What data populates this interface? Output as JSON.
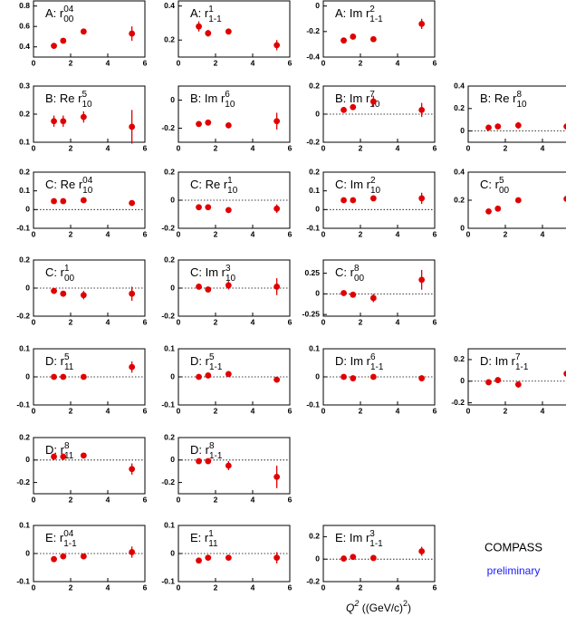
{
  "chart_data": [
    {
      "type": "scatter",
      "label": "A: r",
      "sup": "04",
      "sub": "00",
      "x": [
        1.1,
        1.6,
        2.7,
        5.3
      ],
      "values": [
        0.41,
        0.46,
        0.55,
        0.53
      ],
      "errors": [
        0.01,
        0.01,
        0.01,
        0.07
      ],
      "xlim": [
        0,
        6
      ],
      "ylim": [
        0.3,
        0.85
      ],
      "xticks": [
        0,
        2,
        4,
        6
      ],
      "yticks": [
        0.4,
        0.6,
        0.8
      ],
      "color": "#e00000",
      "zero_line": false
    },
    {
      "type": "scatter",
      "label": "A: r",
      "sup": "1",
      "sub": "1-1",
      "x": [
        1.1,
        1.6,
        2.7,
        5.3
      ],
      "values": [
        0.28,
        0.24,
        0.25,
        0.17
      ],
      "errors": [
        0.03,
        0.02,
        0.01,
        0.03
      ],
      "xlim": [
        0,
        6
      ],
      "ylim": [
        0.1,
        0.43
      ],
      "xticks": [
        0,
        2,
        4,
        6
      ],
      "yticks": [
        0.2,
        0.4
      ],
      "color": "#e00000",
      "zero_line": false
    },
    {
      "type": "scatter",
      "label": "A: Im r",
      "sup": "2",
      "sub": "1-1",
      "x": [
        1.1,
        1.6,
        2.7,
        5.3
      ],
      "values": [
        -0.27,
        -0.24,
        -0.26,
        -0.14
      ],
      "errors": [
        0.02,
        0.01,
        0.01,
        0.04
      ],
      "xlim": [
        0,
        6
      ],
      "ylim": [
        -0.4,
        0.04
      ],
      "xticks": [
        0,
        2,
        4,
        6
      ],
      "yticks": [
        -0.4,
        -0.2,
        0
      ],
      "color": "#e00000",
      "zero_line": false
    },
    {
      "type": "scatter",
      "label": "B: Re r",
      "sup": "5",
      "sub": "10",
      "x": [
        1.1,
        1.6,
        2.7,
        5.3
      ],
      "values": [
        0.175,
        0.175,
        0.19,
        0.155
      ],
      "errors": [
        0.02,
        0.02,
        0.02,
        0.06
      ],
      "xlim": [
        0,
        6
      ],
      "ylim": [
        0.1,
        0.3
      ],
      "xticks": [
        0,
        2,
        4,
        6
      ],
      "yticks": [
        0.1,
        0.2,
        0.3
      ],
      "color": "#e00000",
      "zero_line": false
    },
    {
      "type": "scatter",
      "label": "B: Im r",
      "sup": "6",
      "sub": "10",
      "x": [
        1.1,
        1.6,
        2.7,
        5.3
      ],
      "values": [
        -0.17,
        -0.16,
        -0.18,
        -0.15
      ],
      "errors": [
        0.01,
        0.01,
        0.01,
        0.06
      ],
      "xlim": [
        0,
        6
      ],
      "ylim": [
        -0.3,
        0.1
      ],
      "xticks": [
        0,
        2,
        4,
        6
      ],
      "yticks": [
        -0.2,
        0
      ],
      "color": "#e00000",
      "zero_line": false
    },
    {
      "type": "scatter",
      "label": "B: Im r",
      "sup": "7",
      "sub": "10",
      "x": [
        1.1,
        1.6,
        2.7,
        5.3
      ],
      "values": [
        0.03,
        0.05,
        0.09,
        0.03
      ],
      "errors": [
        0.02,
        0.01,
        0.04,
        0.05
      ],
      "xlim": [
        0,
        6
      ],
      "ylim": [
        -0.2,
        0.2
      ],
      "xticks": [
        0,
        2,
        4,
        6
      ],
      "yticks": [
        -0.2,
        0,
        0.2
      ],
      "color": "#e00000",
      "zero_line": true
    },
    {
      "type": "scatter",
      "label": "B: Re r",
      "sup": "8",
      "sub": "10",
      "x": [
        1.1,
        1.6,
        2.7,
        5.3
      ],
      "values": [
        0.03,
        0.04,
        0.05,
        0.04
      ],
      "errors": [
        0.02,
        0.02,
        0.03,
        0.09
      ],
      "xlim": [
        0,
        6
      ],
      "ylim": [
        -0.1,
        0.4
      ],
      "xticks": [
        0,
        2,
        4,
        6
      ],
      "yticks": [
        0,
        0.2,
        0.4
      ],
      "color": "#e00000",
      "zero_line": true
    },
    {
      "type": "scatter",
      "label": "C: Re r",
      "sup": "04",
      "sub": "10",
      "x": [
        1.1,
        1.6,
        2.7,
        5.3
      ],
      "values": [
        0.045,
        0.045,
        0.05,
        0.035
      ],
      "errors": [
        0.005,
        0.005,
        0.005,
        0.01
      ],
      "xlim": [
        0,
        6
      ],
      "ylim": [
        -0.1,
        0.2
      ],
      "xticks": [
        0,
        2,
        4,
        6
      ],
      "yticks": [
        -0.1,
        0,
        0.1,
        0.2
      ],
      "color": "#e00000",
      "zero_line": true
    },
    {
      "type": "scatter",
      "label": "C: Re r",
      "sup": "1",
      "sub": "10",
      "x": [
        1.1,
        1.6,
        2.7,
        5.3
      ],
      "values": [
        -0.05,
        -0.05,
        -0.07,
        -0.06
      ],
      "errors": [
        0.01,
        0.01,
        0.01,
        0.03
      ],
      "xlim": [
        0,
        6
      ],
      "ylim": [
        -0.2,
        0.2
      ],
      "xticks": [
        0,
        2,
        4,
        6
      ],
      "yticks": [
        -0.2,
        0,
        0.2
      ],
      "color": "#e00000",
      "zero_line": true
    },
    {
      "type": "scatter",
      "label": "C: Im r",
      "sup": "2",
      "sub": "10",
      "x": [
        1.1,
        1.6,
        2.7,
        5.3
      ],
      "values": [
        0.05,
        0.05,
        0.06,
        0.06
      ],
      "errors": [
        0.01,
        0.01,
        0.01,
        0.03
      ],
      "xlim": [
        0,
        6
      ],
      "ylim": [
        -0.1,
        0.2
      ],
      "xticks": [
        0,
        2,
        4,
        6
      ],
      "yticks": [
        -0.1,
        0,
        0.1,
        0.2
      ],
      "color": "#e00000",
      "zero_line": true
    },
    {
      "type": "scatter",
      "label": "C: r",
      "sup": "5",
      "sub": "00",
      "x": [
        1.1,
        1.6,
        2.7,
        5.3
      ],
      "values": [
        0.12,
        0.14,
        0.2,
        0.21
      ],
      "errors": [
        0.01,
        0.01,
        0.01,
        0.07
      ],
      "xlim": [
        0,
        6
      ],
      "ylim": [
        0,
        0.4
      ],
      "xticks": [
        0,
        2,
        4,
        6
      ],
      "yticks": [
        0,
        0.2,
        0.4
      ],
      "color": "#e00000",
      "zero_line": false
    },
    {
      "type": "scatter",
      "label": "C: r",
      "sup": "1",
      "sub": "00",
      "x": [
        1.1,
        1.6,
        2.7,
        5.3
      ],
      "values": [
        -0.02,
        -0.04,
        -0.05,
        -0.04
      ],
      "errors": [
        0.02,
        0.01,
        0.03,
        0.05
      ],
      "xlim": [
        0,
        6
      ],
      "ylim": [
        -0.2,
        0.2
      ],
      "xticks": [
        0,
        2,
        4,
        6
      ],
      "yticks": [
        -0.2,
        0,
        0.2
      ],
      "color": "#e00000",
      "zero_line": true
    },
    {
      "type": "scatter",
      "label": "C: Im r",
      "sup": "3",
      "sub": "10",
      "x": [
        1.1,
        1.6,
        2.7,
        5.3
      ],
      "values": [
        0.01,
        -0.01,
        0.02,
        0.01
      ],
      "errors": [
        0.01,
        0.01,
        0.03,
        0.06
      ],
      "xlim": [
        0,
        6
      ],
      "ylim": [
        -0.2,
        0.2
      ],
      "xticks": [
        0,
        2,
        4,
        6
      ],
      "yticks": [
        -0.2,
        0,
        0.2
      ],
      "color": "#e00000",
      "zero_line": true
    },
    {
      "type": "scatter",
      "label": "C: r",
      "sup": "8",
      "sub": "00",
      "x": [
        1.1,
        1.6,
        2.7,
        5.3
      ],
      "values": [
        0.01,
        -0.01,
        -0.05,
        0.17
      ],
      "errors": [
        0.02,
        0.02,
        0.05,
        0.12
      ],
      "xlim": [
        0,
        6
      ],
      "ylim": [
        -0.27,
        0.41
      ],
      "xticks": [
        0,
        2,
        4,
        6
      ],
      "yticks": [
        -0.25,
        0,
        0.25
      ],
      "color": "#e00000",
      "zero_line": true
    },
    {
      "type": "scatter",
      "label": "D: r",
      "sup": "5",
      "sub": "11",
      "x": [
        1.1,
        1.6,
        2.7,
        5.3
      ],
      "values": [
        0,
        0,
        0,
        0.035
      ],
      "errors": [
        0.005,
        0.005,
        0.005,
        0.02
      ],
      "xlim": [
        0,
        6
      ],
      "ylim": [
        -0.1,
        0.1
      ],
      "xticks": [
        0,
        2,
        4,
        6
      ],
      "yticks": [
        -0.1,
        0,
        0.1
      ],
      "color": "#e00000",
      "zero_line": true
    },
    {
      "type": "scatter",
      "label": "D: r",
      "sup": "5",
      "sub": "1-1",
      "x": [
        1.1,
        1.6,
        2.7,
        5.3
      ],
      "values": [
        0,
        0.005,
        0.01,
        -0.01
      ],
      "errors": [
        0.005,
        0.005,
        0.005,
        0.01
      ],
      "xlim": [
        0,
        6
      ],
      "ylim": [
        -0.1,
        0.1
      ],
      "xticks": [
        0,
        2,
        4,
        6
      ],
      "yticks": [
        -0.1,
        0,
        0.1
      ],
      "color": "#e00000",
      "zero_line": true
    },
    {
      "type": "scatter",
      "label": "D: Im r",
      "sup": "6",
      "sub": "1-1",
      "x": [
        1.1,
        1.6,
        2.7,
        5.3
      ],
      "values": [
        0,
        -0.005,
        0,
        -0.005
      ],
      "errors": [
        0.005,
        0.005,
        0.005,
        0.01
      ],
      "xlim": [
        0,
        6
      ],
      "ylim": [
        -0.1,
        0.1
      ],
      "xticks": [
        0,
        2,
        4,
        6
      ],
      "yticks": [
        -0.1,
        0,
        0.1
      ],
      "color": "#e00000",
      "zero_line": true
    },
    {
      "type": "scatter",
      "label": "D: Im r",
      "sup": "7",
      "sub": "1-1",
      "x": [
        1.1,
        1.6,
        2.7,
        5.3
      ],
      "values": [
        -0.01,
        0.01,
        -0.03,
        0.07
      ],
      "errors": [
        0.02,
        0.02,
        0.03,
        0.08
      ],
      "xlim": [
        0,
        6
      ],
      "ylim": [
        -0.22,
        0.3
      ],
      "xticks": [
        0,
        2,
        4,
        6
      ],
      "yticks": [
        -0.2,
        0,
        0.2
      ],
      "color": "#e00000",
      "zero_line": true
    },
    {
      "type": "scatter",
      "label": "D: r",
      "sup": "8",
      "sub": "11",
      "x": [
        1.1,
        1.6,
        2.7,
        5.3
      ],
      "values": [
        0.03,
        0.03,
        0.04,
        -0.08
      ],
      "errors": [
        0.02,
        0.02,
        0.02,
        0.05
      ],
      "xlim": [
        0,
        6
      ],
      "ylim": [
        -0.3,
        0.2
      ],
      "xticks": [
        0,
        2,
        4,
        6
      ],
      "yticks": [
        -0.2,
        0,
        0.2
      ],
      "color": "#e00000",
      "zero_line": true
    },
    {
      "type": "scatter",
      "label": "D: r",
      "sup": "8",
      "sub": "1-1",
      "x": [
        1.1,
        1.6,
        2.7,
        5.3
      ],
      "values": [
        -0.01,
        -0.01,
        -0.05,
        -0.15
      ],
      "errors": [
        0.01,
        0.01,
        0.04,
        0.1
      ],
      "xlim": [
        0,
        6
      ],
      "ylim": [
        -0.3,
        0.2
      ],
      "xticks": [
        0,
        2,
        4,
        6
      ],
      "yticks": [
        -0.2,
        0,
        0.2
      ],
      "color": "#e00000",
      "zero_line": true
    },
    {
      "type": "scatter",
      "label": "E: r",
      "sup": "04",
      "sub": "1-1",
      "x": [
        1.1,
        1.6,
        2.7,
        5.3
      ],
      "values": [
        -0.02,
        -0.01,
        -0.01,
        0.005
      ],
      "errors": [
        0.005,
        0.005,
        0.005,
        0.02
      ],
      "xlim": [
        0,
        6
      ],
      "ylim": [
        -0.1,
        0.1
      ],
      "xticks": [
        0,
        2,
        4,
        6
      ],
      "yticks": [
        -0.1,
        0,
        0.1
      ],
      "color": "#e00000",
      "zero_line": true
    },
    {
      "type": "scatter",
      "label": "E: r",
      "sup": "1",
      "sub": "11",
      "x": [
        1.1,
        1.6,
        2.7,
        5.3
      ],
      "values": [
        -0.025,
        -0.015,
        -0.015,
        -0.015
      ],
      "errors": [
        0.005,
        0.005,
        0.005,
        0.02
      ],
      "xlim": [
        0,
        6
      ],
      "ylim": [
        -0.1,
        0.1
      ],
      "xticks": [
        0,
        2,
        4,
        6
      ],
      "yticks": [
        -0.1,
        0,
        0.1
      ],
      "color": "#e00000",
      "zero_line": true
    },
    {
      "type": "scatter",
      "label": "E: Im r",
      "sup": "3",
      "sub": "1-1",
      "x": [
        1.1,
        1.6,
        2.7,
        5.3
      ],
      "values": [
        0.005,
        0.02,
        0.01,
        0.07
      ],
      "errors": [
        0.01,
        0.01,
        0.01,
        0.04
      ],
      "xlim": [
        0,
        6
      ],
      "ylim": [
        -0.2,
        0.3
      ],
      "xticks": [
        0,
        2,
        4,
        6
      ],
      "yticks": [
        -0.2,
        0,
        0.2
      ],
      "color": "#e00000",
      "zero_line": true
    }
  ],
  "x_axis_label": {
    "text": "Q",
    "sup": "2",
    "unit": " ((GeV/c)",
    "unit_sup": "2",
    "close": ")"
  },
  "experiment": "COMPASS",
  "status": "preliminary"
}
